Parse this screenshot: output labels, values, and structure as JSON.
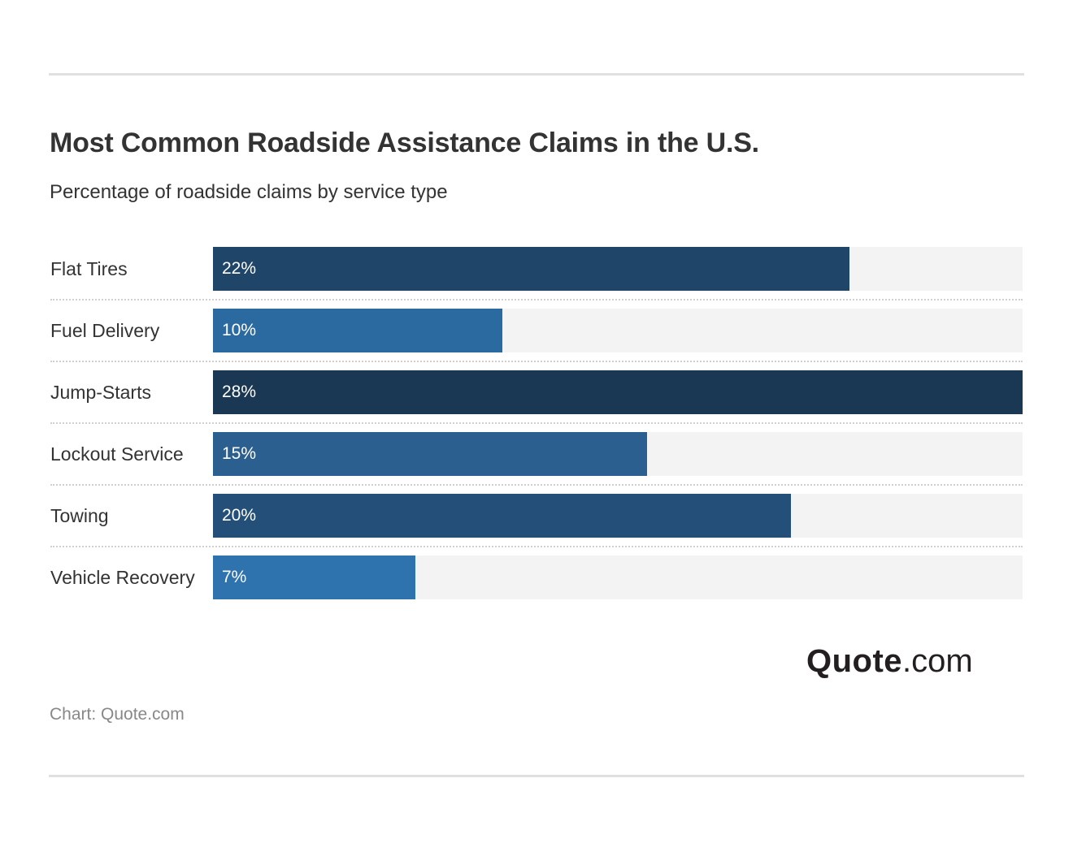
{
  "chart_data": {
    "type": "bar",
    "orientation": "horizontal",
    "title": "Most Common Roadside Assistance Claims in the U.S.",
    "subtitle": "Percentage of roadside claims by service type",
    "categories": [
      "Flat Tires",
      "Fuel Delivery",
      "Jump-Starts",
      "Lockout Service",
      "Towing",
      "Vehicle Recovery"
    ],
    "values": [
      22,
      10,
      28,
      15,
      20,
      7
    ],
    "value_labels": [
      "22%",
      "10%",
      "28%",
      "15%",
      "20%",
      "7%"
    ],
    "colors": [
      "#1f4568",
      "#2b6aa0",
      "#1a3753",
      "#2a5f8f",
      "#234f78",
      "#2e72ae"
    ],
    "xlim": [
      0,
      28
    ],
    "grid": false,
    "source": "Chart: Quote.com"
  },
  "logo": {
    "bold": "Quote",
    "light": ".com"
  }
}
